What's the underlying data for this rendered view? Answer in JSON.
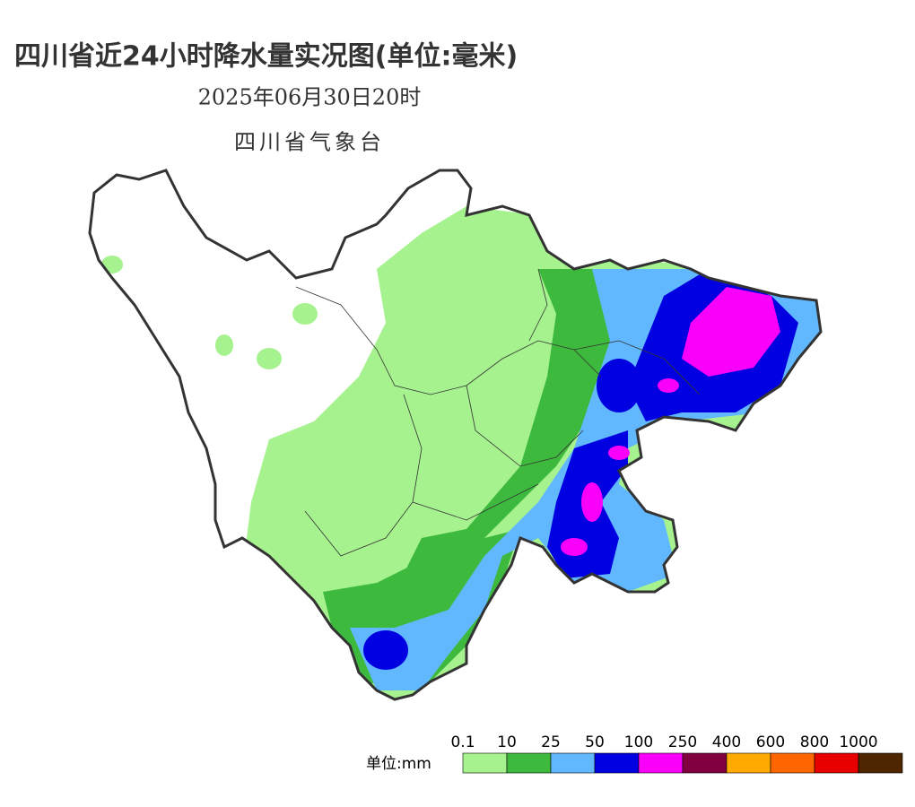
{
  "title": "四川省近24小时降水量实况图(单位:毫米)",
  "datetime": "2025年06月30日20时",
  "source": "四川省气象台",
  "legend": {
    "unit_label": "单位:mm",
    "levels": [
      0.1,
      10,
      25,
      50,
      100,
      250,
      400,
      600,
      800,
      1000
    ],
    "colors": [
      "#a6f28f",
      "#3dba3d",
      "#61b8ff",
      "#0000e1",
      "#fa00fa",
      "#800040",
      "#ffaa00",
      "#ff6600",
      "#e60000",
      "#4d2600"
    ]
  }
}
